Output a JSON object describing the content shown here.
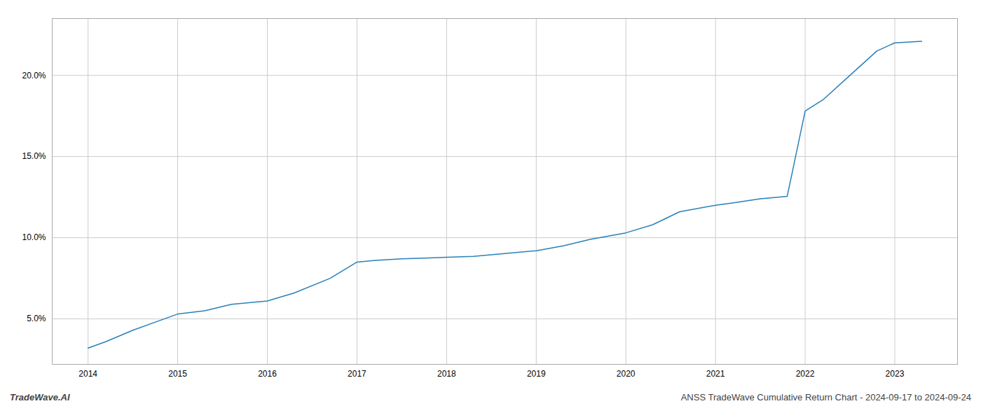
{
  "chart_data": {
    "type": "line",
    "x": [
      2014.0,
      2014.2,
      2014.5,
      2014.8,
      2015.0,
      2015.3,
      2015.6,
      2016.0,
      2016.3,
      2016.7,
      2017.0,
      2017.2,
      2017.5,
      2017.8,
      2018.0,
      2018.3,
      2018.6,
      2019.0,
      2019.3,
      2019.6,
      2020.0,
      2020.3,
      2020.6,
      2021.0,
      2021.2,
      2021.5,
      2021.8,
      2022.0,
      2022.2,
      2022.5,
      2022.8,
      2023.0,
      2023.3
    ],
    "values": [
      3.2,
      3.6,
      4.3,
      4.9,
      5.3,
      5.5,
      5.9,
      6.1,
      6.6,
      7.5,
      8.5,
      8.6,
      8.7,
      8.75,
      8.8,
      8.85,
      9.0,
      9.2,
      9.5,
      9.9,
      10.3,
      10.8,
      11.6,
      12.0,
      12.15,
      12.4,
      12.55,
      17.8,
      18.5,
      20.0,
      21.5,
      22.0,
      22.1
    ],
    "color": "#2980b9",
    "xlim": [
      2013.6,
      2023.7
    ],
    "xticks": [
      2014,
      2015,
      2016,
      2017,
      2018,
      2019,
      2020,
      2021,
      2022,
      2023
    ],
    "ylim": [
      2.2,
      23.5
    ],
    "yticks": [
      {
        "value": 5.0,
        "label": "5.0%"
      },
      {
        "value": 10.0,
        "label": "10.0%"
      },
      {
        "value": 15.0,
        "label": "15.0%"
      },
      {
        "value": 20.0,
        "label": "20.0%"
      }
    ],
    "grid": true,
    "annotations": [
      "TradeWave.AI",
      "ANSS TradeWave Cumulative Return Chart - 2024-09-17 to 2024-09-24"
    ]
  }
}
